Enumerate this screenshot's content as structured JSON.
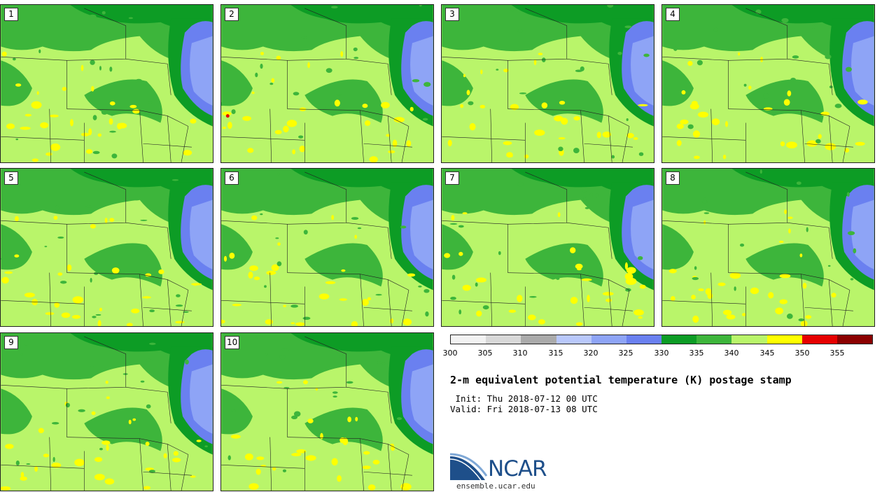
{
  "title": "2-m equivalent potential temperature (K) postage stamp",
  "init_line": " Init: Thu 2018-07-12 00 UTC",
  "valid_line": "Valid: Fri 2018-07-13 08 UTC",
  "logo_text": "NCAR",
  "url": "ensemble.ucar.edu",
  "members": [
    "1",
    "2",
    "3",
    "4",
    "5",
    "6",
    "7",
    "8",
    "9",
    "10"
  ],
  "colorbar": {
    "labels": [
      "300",
      "305",
      "310",
      "315",
      "320",
      "325",
      "330",
      "335",
      "340",
      "345",
      "350",
      "355"
    ],
    "colors": [
      "#f2f2f2",
      "#d8d8d8",
      "#aaaaaa",
      "#b9c8fb",
      "#8ea4f6",
      "#6a80f0",
      "#0d9c25",
      "#3db53b",
      "#b9f56a",
      "#ffff00",
      "#e60000",
      "#8b0000"
    ]
  },
  "map_colors": {
    "base": "#b9f56a",
    "mid_green": "#3db53b",
    "dark_green": "#0d9c25",
    "lake_dark": "#6a80f0",
    "lake_light": "#8ea4f6",
    "yellow": "#ffff00",
    "red": "#e60000",
    "border": "#222222"
  }
}
